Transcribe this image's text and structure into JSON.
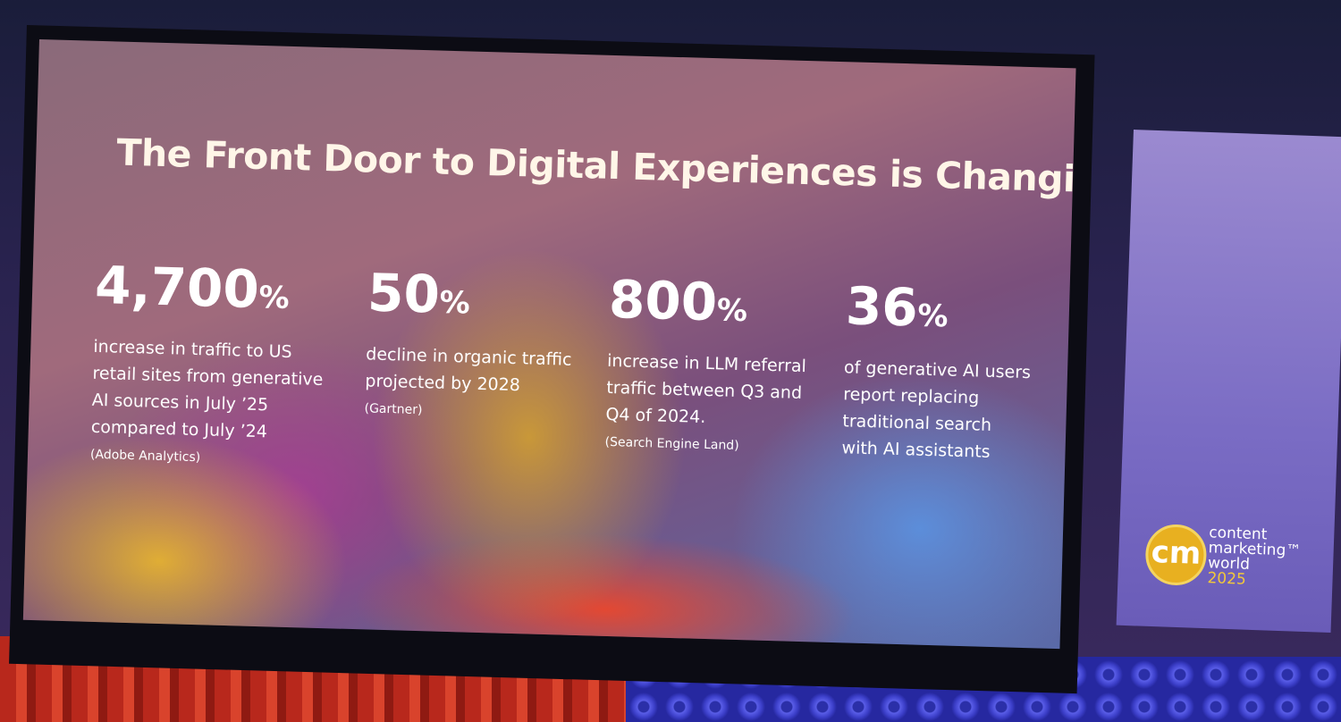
{
  "slide": {
    "title": "The Front Door to Digital Experiences is Changing",
    "stats": [
      {
        "figure": "4,700",
        "unit": "%",
        "lines": [
          "increase in traffic to US",
          "retail sites from generative",
          "AI sources in July ’25",
          "compared to July ’24"
        ],
        "source": "(Adobe Analytics)"
      },
      {
        "figure": "50",
        "unit": "%",
        "lines": [
          "decline in organic traffic",
          "projected by 2028"
        ],
        "source": "(Gartner)"
      },
      {
        "figure": "800",
        "unit": "%",
        "lines": [
          "increase in LLM referral",
          "traffic between Q3 and",
          "Q4 of 2024."
        ],
        "source": "(Search Engine Land)"
      },
      {
        "figure": "36",
        "unit": "%",
        "lines": [
          "of generative AI users",
          "report replacing",
          "traditional search",
          "with AI assistants"
        ]
      }
    ]
  },
  "side_screen": {
    "logo_mark": "cm",
    "logo_lines": [
      "content",
      "marketing™",
      "world"
    ],
    "logo_year": "2025"
  }
}
